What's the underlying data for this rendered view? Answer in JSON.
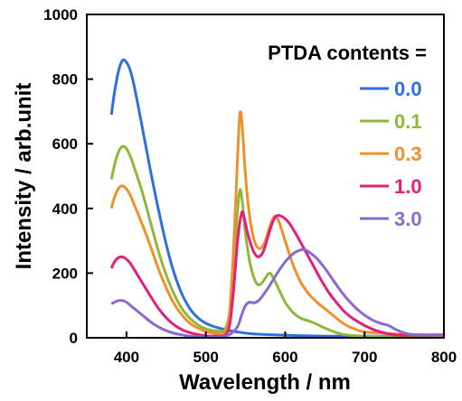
{
  "chart_data": {
    "type": "line",
    "xlabel": "Wavelength / nm",
    "ylabel": "Intensity / arb.unit",
    "xlim": [
      350,
      800
    ],
    "ylim": [
      0,
      1000
    ],
    "x_ticks": [
      "400",
      "500",
      "600",
      "700",
      "800"
    ],
    "y_ticks": [
      "0",
      "200",
      "400",
      "600",
      "800",
      "1000"
    ],
    "legend_title": "PTDA contents =",
    "legend_position": "top-right",
    "series": [
      {
        "name": "0.0",
        "color": "#2f6fe0",
        "points": [
          [
            381,
            690
          ],
          [
            385,
            760
          ],
          [
            390,
            825
          ],
          [
            395,
            858
          ],
          [
            400,
            852
          ],
          [
            405,
            825
          ],
          [
            410,
            775
          ],
          [
            420,
            650
          ],
          [
            430,
            520
          ],
          [
            440,
            400
          ],
          [
            450,
            290
          ],
          [
            460,
            200
          ],
          [
            470,
            135
          ],
          [
            480,
            90
          ],
          [
            490,
            62
          ],
          [
            500,
            45
          ],
          [
            510,
            35
          ],
          [
            520,
            28
          ],
          [
            530,
            22
          ],
          [
            540,
            18
          ],
          [
            560,
            12
          ],
          [
            600,
            8
          ],
          [
            650,
            5
          ],
          [
            700,
            5
          ],
          [
            750,
            5
          ],
          [
            800,
            5
          ]
        ]
      },
      {
        "name": "0.1",
        "color": "#8fb83a",
        "points": [
          [
            381,
            490
          ],
          [
            385,
            535
          ],
          [
            390,
            575
          ],
          [
            395,
            592
          ],
          [
            400,
            585
          ],
          [
            405,
            560
          ],
          [
            410,
            525
          ],
          [
            420,
            450
          ],
          [
            430,
            360
          ],
          [
            440,
            270
          ],
          [
            450,
            195
          ],
          [
            460,
            135
          ],
          [
            470,
            90
          ],
          [
            480,
            60
          ],
          [
            490,
            40
          ],
          [
            500,
            28
          ],
          [
            510,
            22
          ],
          [
            520,
            20
          ],
          [
            525,
            30
          ],
          [
            530,
            80
          ],
          [
            535,
            220
          ],
          [
            540,
            395
          ],
          [
            543,
            458
          ],
          [
            546,
            420
          ],
          [
            550,
            320
          ],
          [
            555,
            240
          ],
          [
            560,
            190
          ],
          [
            565,
            165
          ],
          [
            570,
            168
          ],
          [
            575,
            185
          ],
          [
            580,
            200
          ],
          [
            584,
            190
          ],
          [
            590,
            160
          ],
          [
            600,
            110
          ],
          [
            610,
            78
          ],
          [
            620,
            60
          ],
          [
            630,
            52
          ],
          [
            640,
            42
          ],
          [
            650,
            30
          ],
          [
            660,
            20
          ],
          [
            670,
            12
          ],
          [
            680,
            8
          ],
          [
            700,
            5
          ],
          [
            750,
            3
          ],
          [
            800,
            3
          ]
        ]
      },
      {
        "name": "0.3",
        "color": "#f0902a",
        "points": [
          [
            381,
            400
          ],
          [
            385,
            435
          ],
          [
            390,
            462
          ],
          [
            395,
            470
          ],
          [
            400,
            460
          ],
          [
            405,
            440
          ],
          [
            410,
            410
          ],
          [
            420,
            350
          ],
          [
            430,
            285
          ],
          [
            440,
            215
          ],
          [
            450,
            155
          ],
          [
            460,
            105
          ],
          [
            470,
            70
          ],
          [
            480,
            45
          ],
          [
            490,
            30
          ],
          [
            500,
            20
          ],
          [
            510,
            14
          ],
          [
            520,
            12
          ],
          [
            525,
            20
          ],
          [
            530,
            80
          ],
          [
            535,
            280
          ],
          [
            540,
            560
          ],
          [
            543,
            695
          ],
          [
            546,
            650
          ],
          [
            550,
            500
          ],
          [
            555,
            380
          ],
          [
            560,
            310
          ],
          [
            565,
            280
          ],
          [
            570,
            278
          ],
          [
            575,
            300
          ],
          [
            580,
            340
          ],
          [
            585,
            370
          ],
          [
            588,
            375
          ],
          [
            592,
            360
          ],
          [
            600,
            300
          ],
          [
            610,
            225
          ],
          [
            620,
            170
          ],
          [
            630,
            135
          ],
          [
            640,
            110
          ],
          [
            650,
            90
          ],
          [
            660,
            70
          ],
          [
            670,
            50
          ],
          [
            680,
            35
          ],
          [
            690,
            25
          ],
          [
            700,
            18
          ],
          [
            720,
            15
          ],
          [
            740,
            12
          ],
          [
            760,
            10
          ],
          [
            800,
            10
          ]
        ]
      },
      {
        "name": "1.0",
        "color": "#e0207a",
        "points": [
          [
            381,
            215
          ],
          [
            385,
            235
          ],
          [
            390,
            248
          ],
          [
            395,
            250
          ],
          [
            400,
            243
          ],
          [
            405,
            230
          ],
          [
            410,
            210
          ],
          [
            420,
            170
          ],
          [
            430,
            130
          ],
          [
            440,
            92
          ],
          [
            450,
            62
          ],
          [
            460,
            40
          ],
          [
            470,
            25
          ],
          [
            480,
            16
          ],
          [
            490,
            10
          ],
          [
            500,
            6
          ],
          [
            510,
            5
          ],
          [
            520,
            5
          ],
          [
            525,
            10
          ],
          [
            530,
            40
          ],
          [
            535,
            150
          ],
          [
            540,
            300
          ],
          [
            545,
            385
          ],
          [
            548,
            375
          ],
          [
            552,
            330
          ],
          [
            558,
            280
          ],
          [
            563,
            255
          ],
          [
            568,
            252
          ],
          [
            573,
            270
          ],
          [
            578,
            310
          ],
          [
            583,
            350
          ],
          [
            588,
            375
          ],
          [
            593,
            378
          ],
          [
            598,
            372
          ],
          [
            605,
            355
          ],
          [
            615,
            315
          ],
          [
            625,
            270
          ],
          [
            635,
            225
          ],
          [
            645,
            180
          ],
          [
            655,
            140
          ],
          [
            665,
            108
          ],
          [
            675,
            80
          ],
          [
            685,
            60
          ],
          [
            695,
            45
          ],
          [
            705,
            32
          ],
          [
            715,
            22
          ],
          [
            725,
            15
          ],
          [
            735,
            10
          ],
          [
            750,
            8
          ],
          [
            800,
            8
          ]
        ]
      },
      {
        "name": "3.0",
        "color": "#8a6ad0",
        "points": [
          [
            381,
            105
          ],
          [
            385,
            110
          ],
          [
            390,
            115
          ],
          [
            395,
            115
          ],
          [
            400,
            110
          ],
          [
            405,
            100
          ],
          [
            410,
            90
          ],
          [
            420,
            70
          ],
          [
            430,
            50
          ],
          [
            440,
            34
          ],
          [
            450,
            22
          ],
          [
            460,
            14
          ],
          [
            470,
            9
          ],
          [
            480,
            5
          ],
          [
            490,
            3
          ],
          [
            500,
            2
          ],
          [
            510,
            2
          ],
          [
            520,
            3
          ],
          [
            530,
            10
          ],
          [
            540,
            35
          ],
          [
            545,
            70
          ],
          [
            550,
            100
          ],
          [
            555,
            110
          ],
          [
            560,
            108
          ],
          [
            565,
            112
          ],
          [
            570,
            125
          ],
          [
            580,
            160
          ],
          [
            590,
            200
          ],
          [
            600,
            235
          ],
          [
            610,
            260
          ],
          [
            620,
            272
          ],
          [
            625,
            272
          ],
          [
            630,
            265
          ],
          [
            640,
            245
          ],
          [
            650,
            215
          ],
          [
            660,
            180
          ],
          [
            670,
            145
          ],
          [
            680,
            115
          ],
          [
            690,
            90
          ],
          [
            700,
            70
          ],
          [
            710,
            55
          ],
          [
            720,
            45
          ],
          [
            730,
            38
          ],
          [
            740,
            25
          ],
          [
            750,
            15
          ],
          [
            760,
            10
          ],
          [
            780,
            8
          ],
          [
            800,
            8
          ]
        ]
      }
    ]
  }
}
